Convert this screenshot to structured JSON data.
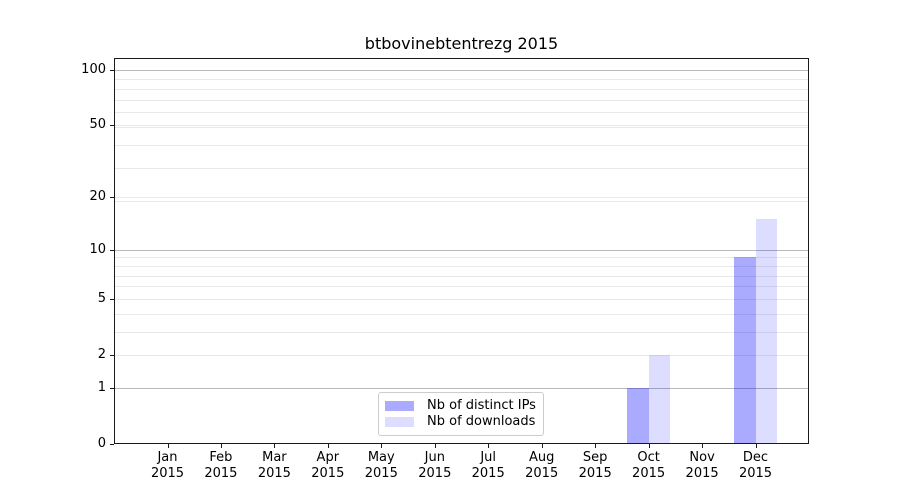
{
  "chart_data": {
    "type": "bar",
    "title": "btbovinebtentrezg 2015",
    "categories": [
      "Jan 2015",
      "Feb 2015",
      "Mar 2015",
      "Apr 2015",
      "May 2015",
      "Jun 2015",
      "Jul 2015",
      "Aug 2015",
      "Sep 2015",
      "Oct 2015",
      "Nov 2015",
      "Dec 2015"
    ],
    "series": [
      {
        "name": "Nb of distinct IPs",
        "color": "#aaaaf2",
        "fill": "rgba(0,0,255,0.335)",
        "values": [
          0,
          0,
          0,
          0,
          0,
          0,
          0,
          0,
          0,
          1,
          0,
          9
        ]
      },
      {
        "name": "Nb of downloads",
        "color": "#dcdcf8",
        "fill": "rgba(0,0,255,0.135)",
        "values": [
          0,
          0,
          0,
          0,
          0,
          0,
          0,
          0,
          0,
          2,
          0,
          15
        ]
      }
    ],
    "yscale": "log1p",
    "yticks": [
      0,
      1,
      2,
      5,
      10,
      20,
      50,
      100
    ],
    "ylim": [
      0,
      117
    ],
    "xlabel": "",
    "ylabel": "",
    "grid": true,
    "legend_position": "lower center",
    "colors": {
      "grid_major": "#b9b9b9",
      "grid_minor": "#e9e9e9",
      "spine": "#1a1a1a",
      "background": "#ffffff"
    }
  }
}
